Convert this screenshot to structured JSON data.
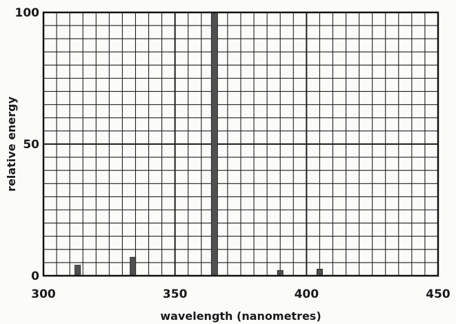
{
  "chart_data": {
    "type": "bar",
    "title": "",
    "xlabel": "wavelength (nanometres)",
    "ylabel": "relative energy",
    "xlim": [
      300,
      450
    ],
    "ylim": [
      0,
      100
    ],
    "xticks": [
      300,
      350,
      400,
      450
    ],
    "yticks": [
      0,
      50,
      100
    ],
    "grid": true,
    "legend": "none",
    "series": [
      {
        "x": [
          313,
          334,
          365,
          390,
          405
        ],
        "values": [
          4,
          7,
          100,
          2,
          2.5
        ]
      }
    ],
    "colors": {
      "bar": "#505050",
      "grid": "#1e1e1e",
      "frame": "#111111",
      "text": "#1a1a1a"
    }
  }
}
